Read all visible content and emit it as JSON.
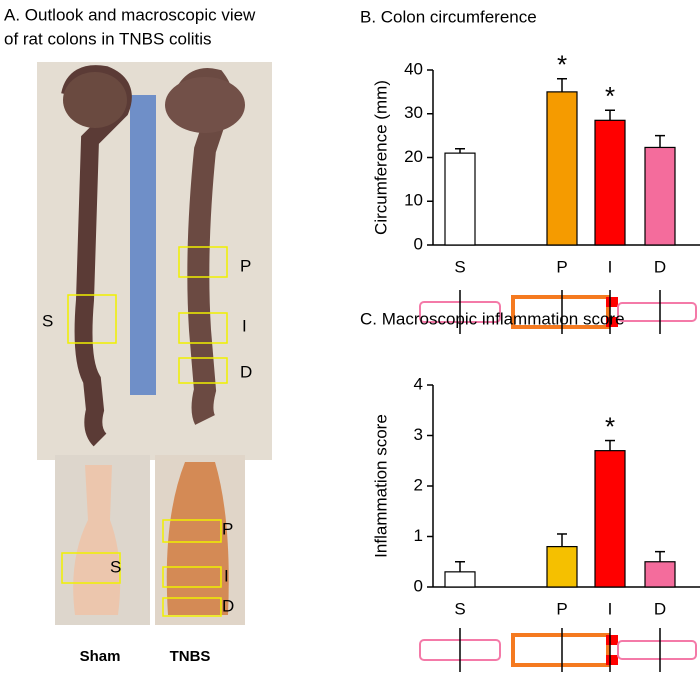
{
  "panel_a": {
    "title_line1": "A.  Outlook and macroscopic view",
    "title_line2": "of rat colons in TNBS colitis",
    "top_labels": [
      "S",
      "P",
      "I",
      "D"
    ],
    "bottom_labels": [
      "S",
      "P",
      "I",
      "D"
    ],
    "captions": [
      "Sham",
      "TNBS"
    ]
  },
  "chart_data": [
    {
      "type": "bar",
      "title": "B. Colon circumference",
      "y_label": "Circumference (mm)",
      "categories": [
        "S",
        "P",
        "I",
        "D"
      ],
      "values": [
        21,
        35,
        28.5,
        22.3
      ],
      "errors": [
        1,
        3,
        2.3,
        2.7
      ],
      "colors": [
        "#ffffff",
        "#f59b00",
        "#ff0000",
        "#f46c9c"
      ],
      "significance": [
        null,
        "*",
        "*",
        null
      ],
      "ylim": [
        0,
        40
      ],
      "yticks": [
        0,
        10,
        20,
        30,
        40
      ]
    },
    {
      "type": "bar",
      "title": "C. Macroscopic inflammation score",
      "y_label": "Inflammation score",
      "categories": [
        "S",
        "P",
        "I",
        "D"
      ],
      "values": [
        0.3,
        0.8,
        2.7,
        0.5
      ],
      "errors": [
        0.2,
        0.25,
        0.2,
        0.2
      ],
      "colors": [
        "#ffffff",
        "#f5c000",
        "#ff0000",
        "#f46c9c"
      ],
      "significance": [
        null,
        null,
        "*",
        null
      ],
      "ylim": [
        0,
        4
      ],
      "yticks": [
        0,
        1,
        2,
        3,
        4
      ]
    }
  ]
}
